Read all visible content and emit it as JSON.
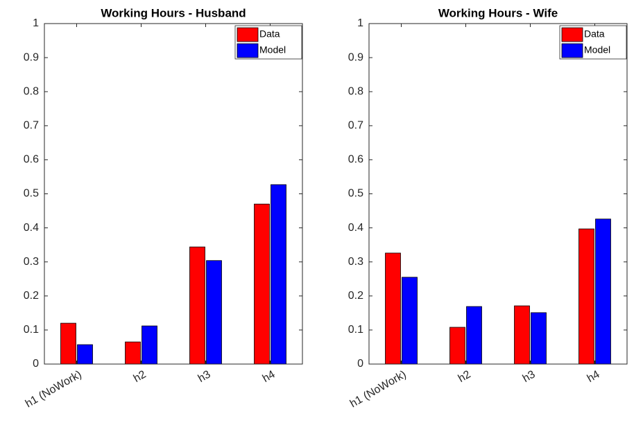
{
  "chart_data": [
    {
      "type": "bar",
      "title": "Working Hours - Husband",
      "categories": [
        "h1 (NoWork)",
        "h2",
        "h3",
        "h4"
      ],
      "series": [
        {
          "name": "Data",
          "color": "#ff0000",
          "values": [
            0.12,
            0.065,
            0.344,
            0.47
          ]
        },
        {
          "name": "Model",
          "color": "#0000ff",
          "values": [
            0.057,
            0.112,
            0.304,
            0.527
          ]
        }
      ],
      "ylim": [
        0,
        1
      ],
      "yticks": [
        0,
        0.1,
        0.2,
        0.3,
        0.4,
        0.5,
        0.6,
        0.7,
        0.8,
        0.9,
        1
      ],
      "legend": "top-right"
    },
    {
      "type": "bar",
      "title": "Working Hours - Wife",
      "categories": [
        "h1 (NoWork)",
        "h2",
        "h3",
        "h4"
      ],
      "series": [
        {
          "name": "Data",
          "color": "#ff0000",
          "values": [
            0.326,
            0.108,
            0.171,
            0.397
          ]
        },
        {
          "name": "Model",
          "color": "#0000ff",
          "values": [
            0.255,
            0.169,
            0.151,
            0.426
          ]
        }
      ],
      "ylim": [
        0,
        1
      ],
      "yticks": [
        0,
        0.1,
        0.2,
        0.3,
        0.4,
        0.5,
        0.6,
        0.7,
        0.8,
        0.9,
        1
      ],
      "legend": "top-right"
    }
  ]
}
